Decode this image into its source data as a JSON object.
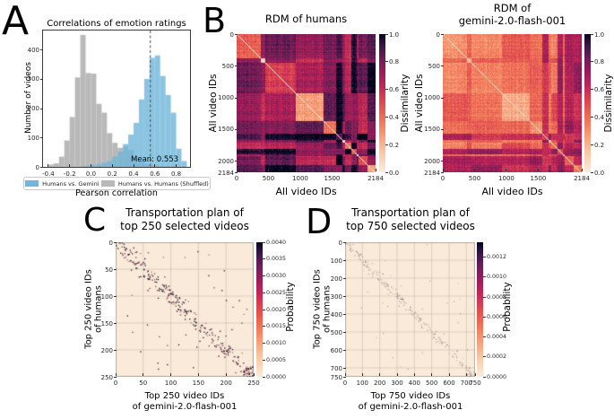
{
  "panel_labels": {
    "a": "A",
    "b": "B",
    "c": "C",
    "d": "D"
  },
  "colors": {
    "background": "#ffffff",
    "hist_blue": "#72b7da",
    "hist_gray": "#b9b9b9",
    "mean_line": "#444444",
    "cream_bg": "#f9ead9",
    "grid_line": "rgba(140,125,115,0.35)",
    "rocket_stops": [
      [
        0.0,
        "#faebdd"
      ],
      [
        0.12,
        "#f9cfb0"
      ],
      [
        0.25,
        "#f7a37c"
      ],
      [
        0.38,
        "#f07355"
      ],
      [
        0.5,
        "#e04a51"
      ],
      [
        0.62,
        "#c12756"
      ],
      [
        0.72,
        "#9c1c59"
      ],
      [
        0.82,
        "#6e1e56"
      ],
      [
        0.9,
        "#43184a"
      ],
      [
        0.96,
        "#1f0e33"
      ],
      [
        1.0,
        "#03051a"
      ]
    ]
  },
  "chart_data": [
    {
      "id": "emotion_hist",
      "type": "bar",
      "title": "Correlations of emotion ratings",
      "xlabel": "Pearson correlation",
      "ylabel": "Number of videos",
      "xlim": [
        -0.45,
        0.93
      ],
      "ylim": [
        0,
        465
      ],
      "xticks": [
        [
          -0.4,
          "-0.4"
        ],
        [
          -0.2,
          "-0.2"
        ],
        [
          0.0,
          "0.0"
        ],
        [
          0.2,
          "0.2"
        ],
        [
          0.4,
          "0.4"
        ],
        [
          0.6,
          "0.6"
        ],
        [
          0.8,
          "0.8"
        ]
      ],
      "yticks": [
        [
          0,
          "0"
        ],
        [
          100,
          "100"
        ],
        [
          200,
          "200"
        ],
        [
          300,
          "300"
        ],
        [
          400,
          "400"
        ]
      ],
      "bin_width": 0.05,
      "series": [
        {
          "name": "Humans vs. Gemini",
          "color_key": "hist_blue",
          "bin_start": -0.1,
          "values": [
            2,
            4,
            6,
            10,
            14,
            20,
            35,
            52,
            78,
            110,
            150,
            230,
            300,
            372,
            380,
            310,
            245,
            185,
            62,
            20
          ]
        },
        {
          "name": "Humans vs. Humans (Shuffled)",
          "color_key": "hist_gray",
          "bin_start": -0.4,
          "values": [
            8,
            12,
            35,
            90,
            170,
            305,
            450,
            320,
            318,
            215,
            185,
            115,
            82,
            65,
            70,
            58,
            30,
            18,
            10,
            6,
            4,
            3,
            2,
            2,
            1,
            1
          ]
        }
      ],
      "mean_line": {
        "x": 0.553,
        "label": "Mean: 0.553"
      },
      "legend_position": "bottom"
    },
    {
      "id": "rdm_humans",
      "type": "heatmap",
      "title_lines": [
        "RDM of humans"
      ],
      "xlabel": "All video IDs",
      "ylabel": "All video IDs",
      "n": 2184,
      "xticks": [
        [
          0,
          "0"
        ],
        [
          500,
          "500"
        ],
        [
          1000,
          "1000"
        ],
        [
          1500,
          "1500"
        ],
        [
          2184,
          "2184"
        ]
      ],
      "yticks": [
        [
          0,
          "0"
        ],
        [
          500,
          "500"
        ],
        [
          1000,
          "1000"
        ],
        [
          1500,
          "1500"
        ],
        [
          2000,
          "2000"
        ],
        [
          2184,
          "2184"
        ]
      ],
      "colorbar": {
        "label": "Dissimilarity",
        "vmin": 0,
        "vmax": 1,
        "ticks": [
          [
            1.0,
            "1.0"
          ],
          [
            0.8,
            "0.8"
          ],
          [
            0.6,
            "0.6"
          ],
          [
            0.4,
            "0.4"
          ],
          [
            0.2,
            "0.2"
          ],
          [
            0.0,
            "0.0"
          ]
        ]
      },
      "texture": {
        "seed": 42,
        "clusters": [
          0.17,
          0.035,
          0.215,
          0.2,
          0.095,
          0.045,
          0.015,
          0.05,
          0.035,
          0.012,
          0.067,
          0.061
        ],
        "within": [
          0.45,
          0.15,
          0.55,
          0.25,
          0.38,
          0.85,
          0.08,
          0.35,
          0.5,
          0.08,
          0.5,
          0.25
        ],
        "between_base": 0.74,
        "between_var": 0.16,
        "dark_clusters": [
          5,
          8,
          11
        ],
        "dark_boost": 0.14,
        "stripe": 0.07,
        "noise": 0.06
      }
    },
    {
      "id": "rdm_gemini",
      "type": "heatmap",
      "title_lines": [
        "RDM of",
        "gemini-2.0-flash-001"
      ],
      "xlabel": "All video IDs",
      "ylabel": "All video IDs",
      "n": 2184,
      "xticks": [
        [
          0,
          "0"
        ],
        [
          500,
          "500"
        ],
        [
          1000,
          "1000"
        ],
        [
          1500,
          "1500"
        ],
        [
          2184,
          "2184"
        ]
      ],
      "yticks": [
        [
          0,
          "0"
        ],
        [
          500,
          "500"
        ],
        [
          1000,
          "1000"
        ],
        [
          1500,
          "1500"
        ],
        [
          2000,
          "2000"
        ],
        [
          2184,
          "2184"
        ]
      ],
      "colorbar": {
        "label": "Dissimilarity",
        "vmin": 0,
        "vmax": 1,
        "ticks": [
          [
            1.0,
            "1.0"
          ],
          [
            0.8,
            "0.8"
          ],
          [
            0.6,
            "0.6"
          ],
          [
            0.4,
            "0.4"
          ],
          [
            0.2,
            "0.2"
          ],
          [
            0.0,
            "0.0"
          ]
        ]
      },
      "texture": {
        "seed": 99,
        "clusters": [
          0.17,
          0.035,
          0.215,
          0.2,
          0.095,
          0.045,
          0.015,
          0.05,
          0.035,
          0.012,
          0.067,
          0.061
        ],
        "within": [
          0.3,
          0.22,
          0.33,
          0.22,
          0.3,
          0.55,
          0.25,
          0.4,
          0.45,
          0.25,
          0.45,
          0.35
        ],
        "between_base": 0.42,
        "between_var": 0.1,
        "dark_clusters": [
          5,
          8,
          10,
          11
        ],
        "dark_boost": 0.24,
        "stripe": 0.06,
        "noise": 0.06
      }
    },
    {
      "id": "transport_250",
      "type": "scatter",
      "title_lines": [
        "Transportation plan of",
        "top 250 selected videos"
      ],
      "xlabel_lines": [
        "Top 250 video IDs",
        "of gemini-2.0-flash-001"
      ],
      "ylabel_lines": [
        "Top 250 video IDs",
        "of humans"
      ],
      "n": 250,
      "grid_step": 50,
      "xticks": [
        [
          0,
          "0"
        ],
        [
          50,
          "50"
        ],
        [
          100,
          "100"
        ],
        [
          150,
          "150"
        ],
        [
          200,
          "200"
        ],
        [
          250,
          "250"
        ]
      ],
      "yticks": [
        [
          0,
          "0"
        ],
        [
          50,
          "50"
        ],
        [
          100,
          "100"
        ],
        [
          150,
          "150"
        ],
        [
          200,
          "200"
        ],
        [
          250,
          "250"
        ]
      ],
      "colorbar": {
        "label": "Probability",
        "vmin": 0,
        "vmax": 0.004,
        "ticks": [
          [
            0.004,
            "0.0040"
          ],
          [
            0.0035,
            "0.0035"
          ],
          [
            0.003,
            "0.0030"
          ],
          [
            0.0025,
            "0.0025"
          ],
          [
            0.002,
            "0.0020"
          ],
          [
            0.0015,
            "0.0015"
          ],
          [
            0.001,
            "0.0010"
          ],
          [
            0.0005,
            "0.0005"
          ],
          [
            0.0,
            "0.0000"
          ]
        ]
      },
      "texture": {
        "seed": 5,
        "diag_dots": 260,
        "band": 13,
        "outliers": 42,
        "corner_blob": 22,
        "dot_size": 1.3,
        "dot_colors": [
          "rgba(25,12,35,0.95)",
          "rgba(110,25,75,0.85)",
          "rgba(195,80,85,0.8)"
        ]
      }
    },
    {
      "id": "transport_750",
      "type": "scatter",
      "title_lines": [
        "Transportation plan of",
        "top 750 selected videos"
      ],
      "xlabel_lines": [
        "Top 750 video IDs",
        "of gemini-2.0-flash-001"
      ],
      "ylabel_lines": [
        "Top 750 video IDs",
        "of humans"
      ],
      "n": 750,
      "grid_step": 100,
      "xticks": [
        [
          0,
          "0"
        ],
        [
          100,
          "100"
        ],
        [
          200,
          "200"
        ],
        [
          300,
          "300"
        ],
        [
          400,
          "400"
        ],
        [
          500,
          "500"
        ],
        [
          600,
          "600"
        ],
        [
          700,
          "700"
        ],
        [
          750,
          "750"
        ]
      ],
      "yticks": [
        [
          0,
          "0"
        ],
        [
          100,
          "100"
        ],
        [
          200,
          "200"
        ],
        [
          300,
          "300"
        ],
        [
          400,
          "400"
        ],
        [
          500,
          "500"
        ],
        [
          600,
          "600"
        ],
        [
          700,
          "700"
        ],
        [
          750,
          "750"
        ]
      ],
      "colorbar": {
        "label": "Probability",
        "vmin": 0,
        "vmax": 0.00135,
        "ticks": [
          [
            0.0012,
            "0.0012"
          ],
          [
            0.001,
            "0.0010"
          ],
          [
            0.0008,
            "0.0008"
          ],
          [
            0.0006,
            "0.0006"
          ],
          [
            0.0004,
            "0.0004"
          ],
          [
            0.0002,
            "0.0002"
          ],
          [
            0.0,
            "0.0000"
          ]
        ]
      },
      "texture": {
        "seed": 11,
        "diag_dots": 230,
        "band": 20,
        "outliers": 28,
        "corner_blob": 12,
        "dot_size": 1.1,
        "dot_colors": [
          "rgba(75,55,80,0.45)",
          "rgba(150,95,95,0.38)",
          "rgba(190,130,110,0.35)"
        ]
      }
    }
  ]
}
